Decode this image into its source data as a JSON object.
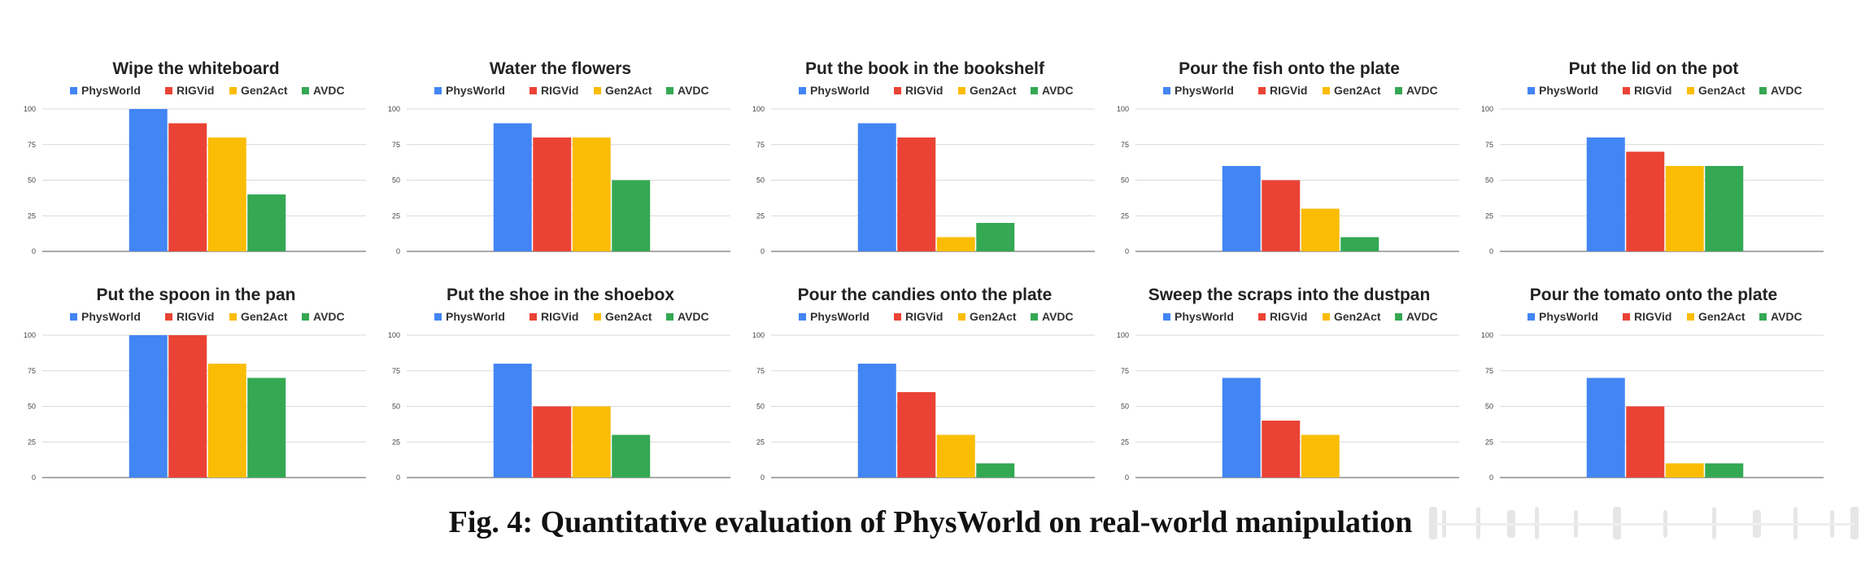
{
  "caption": "Fig. 4: Quantitative evaluation of PhysWorld on real-world manipulation",
  "colors": {
    "PhysWorld": "#4285f4",
    "RIGVid": "#ea4335",
    "Gen2Act": "#fbbc04",
    "AVDC": "#34a853",
    "grid": "#d9d9d9",
    "axis": "#777777"
  },
  "chart_data": [
    {
      "type": "bar",
      "title": "Wipe the whiteboard",
      "categories": [
        "PhysWorld",
        "RIGVid",
        "Gen2Act",
        "AVDC"
      ],
      "values": [
        100,
        90,
        80,
        40
      ],
      "yticks": [
        "0",
        "25",
        "50",
        "75",
        "100"
      ],
      "ylim": [
        0,
        100
      ],
      "legend": "top-center",
      "grid": true
    },
    {
      "type": "bar",
      "title": "Water the flowers",
      "categories": [
        "PhysWorld",
        "RIGVid",
        "Gen2Act",
        "AVDC"
      ],
      "values": [
        90,
        80,
        80,
        50
      ],
      "yticks": [
        "0",
        "25",
        "50",
        "75",
        "100"
      ],
      "ylim": [
        0,
        100
      ],
      "legend": "top-center",
      "grid": true
    },
    {
      "type": "bar",
      "title": "Put the book in the bookshelf",
      "categories": [
        "PhysWorld",
        "RIGVid",
        "Gen2Act",
        "AVDC"
      ],
      "values": [
        90,
        80,
        10,
        20
      ],
      "yticks": [
        "0",
        "25",
        "50",
        "75",
        "100"
      ],
      "ylim": [
        0,
        100
      ],
      "legend": "top-center",
      "grid": true
    },
    {
      "type": "bar",
      "title": "Pour the fish onto the plate",
      "categories": [
        "PhysWorld",
        "RIGVid",
        "Gen2Act",
        "AVDC"
      ],
      "values": [
        60,
        50,
        30,
        10
      ],
      "yticks": [
        "0",
        "25",
        "50",
        "75",
        "100"
      ],
      "ylim": [
        0,
        100
      ],
      "legend": "top-center",
      "grid": true
    },
    {
      "type": "bar",
      "title": "Put the lid on the pot",
      "categories": [
        "PhysWorld",
        "RIGVid",
        "Gen2Act",
        "AVDC"
      ],
      "values": [
        80,
        70,
        60,
        60
      ],
      "yticks": [
        "0",
        "25",
        "50",
        "75",
        "100"
      ],
      "ylim": [
        0,
        100
      ],
      "legend": "top-center",
      "grid": true
    },
    {
      "type": "bar",
      "title": "Put the spoon in the pan",
      "categories": [
        "PhysWorld",
        "RIGVid",
        "Gen2Act",
        "AVDC"
      ],
      "values": [
        100,
        100,
        80,
        70
      ],
      "yticks": [
        "0",
        "25",
        "50",
        "75",
        "100"
      ],
      "ylim": [
        0,
        100
      ],
      "legend": "top-center",
      "grid": true
    },
    {
      "type": "bar",
      "title": "Put the shoe in the shoebox",
      "categories": [
        "PhysWorld",
        "RIGVid",
        "Gen2Act",
        "AVDC"
      ],
      "values": [
        80,
        50,
        50,
        30
      ],
      "yticks": [
        "0",
        "25",
        "50",
        "75",
        "100"
      ],
      "ylim": [
        0,
        100
      ],
      "legend": "top-center",
      "grid": true
    },
    {
      "type": "bar",
      "title": "Pour the candies onto the plate",
      "categories": [
        "PhysWorld",
        "RIGVid",
        "Gen2Act",
        "AVDC"
      ],
      "values": [
        80,
        60,
        30,
        10
      ],
      "yticks": [
        "0",
        "25",
        "50",
        "75",
        "100"
      ],
      "ylim": [
        0,
        100
      ],
      "legend": "top-center",
      "grid": true
    },
    {
      "type": "bar",
      "title": "Sweep the scraps into the dustpan",
      "categories": [
        "PhysWorld",
        "RIGVid",
        "Gen2Act",
        "AVDC"
      ],
      "values": [
        70,
        40,
        30,
        0
      ],
      "yticks": [
        "0",
        "25",
        "50",
        "75",
        "100"
      ],
      "ylim": [
        0,
        100
      ],
      "legend": "top-center",
      "grid": true
    },
    {
      "type": "bar",
      "title": "Pour the tomato onto the plate",
      "categories": [
        "PhysWorld",
        "RIGVid",
        "Gen2Act",
        "AVDC"
      ],
      "values": [
        70,
        50,
        10,
        10
      ],
      "yticks": [
        "0",
        "25",
        "50",
        "75",
        "100"
      ],
      "ylim": [
        0,
        100
      ],
      "legend": "top-center",
      "grid": true
    }
  ]
}
